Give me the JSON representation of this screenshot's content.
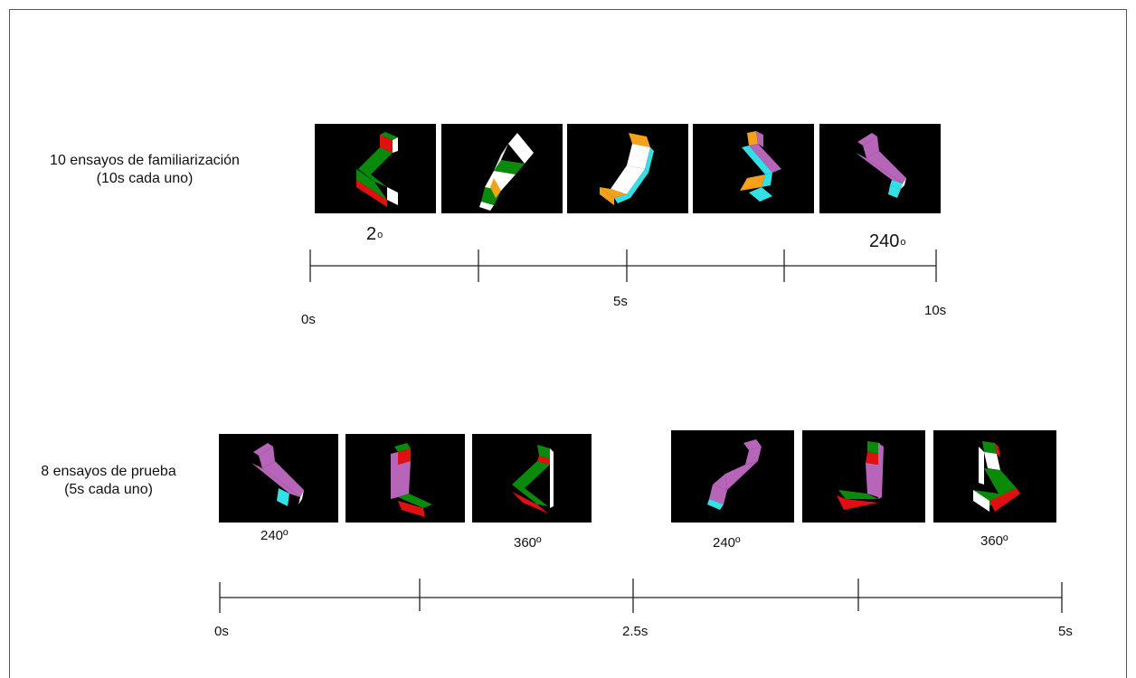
{
  "top": {
    "title_line1": "10 ensayos de familiarización",
    "title_line2": "(10s cada uno)",
    "angle_start": "2",
    "angle_end": "240",
    "degree_mark": "o",
    "ticks": [
      "0s",
      "5s",
      "10s"
    ]
  },
  "bottom": {
    "title_line1": "8 ensayos de prueba",
    "title_line2": "(5s cada uno)",
    "angle_labels": [
      "240º",
      "360º",
      "240º",
      "360º"
    ],
    "ticks": [
      "0s",
      "2.5s",
      "5s"
    ]
  },
  "colors": {
    "background": "#000000",
    "green": "#0a8a0a",
    "red": "#e01010",
    "white": "#ffffff",
    "orange": "#f5a21a",
    "cyan": "#33e0e6",
    "purple": "#b765b9"
  }
}
